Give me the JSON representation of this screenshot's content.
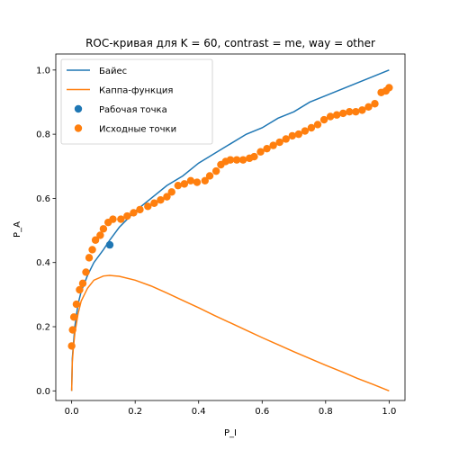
{
  "chart_data": {
    "type": "line",
    "title": "ROC-кривая для K = 60, contrast = me, way = other",
    "xlabel": "P_I",
    "ylabel": "P_A",
    "xlim": [
      -0.05,
      1.05
    ],
    "ylim": [
      -0.03,
      1.05
    ],
    "xticks": [
      0.0,
      0.2,
      0.4,
      0.6,
      0.8,
      1.0
    ],
    "xtick_labels": [
      "0.0",
      "0.2",
      "0.4",
      "0.6",
      "0.8",
      "1.0"
    ],
    "yticks": [
      0.0,
      0.2,
      0.4,
      0.6,
      0.8,
      1.0
    ],
    "ytick_labels": [
      "0.0",
      "0.2",
      "0.4",
      "0.6",
      "0.8",
      "1.0"
    ],
    "grid": false,
    "legend_position": "top-left",
    "series": [
      {
        "name": "Байес",
        "kind": "line",
        "color": "#1f77b4",
        "x": [
          0.0,
          0.002,
          0.005,
          0.01,
          0.02,
          0.03,
          0.05,
          0.07,
          0.1,
          0.12,
          0.15,
          0.2,
          0.25,
          0.3,
          0.35,
          0.4,
          0.45,
          0.5,
          0.55,
          0.6,
          0.65,
          0.7,
          0.75,
          0.8,
          0.85,
          0.9,
          0.95,
          1.0
        ],
        "y": [
          0.0,
          0.1,
          0.14,
          0.2,
          0.27,
          0.31,
          0.36,
          0.4,
          0.44,
          0.47,
          0.51,
          0.56,
          0.6,
          0.64,
          0.67,
          0.71,
          0.74,
          0.77,
          0.8,
          0.82,
          0.85,
          0.87,
          0.9,
          0.92,
          0.94,
          0.96,
          0.98,
          1.0
        ]
      },
      {
        "name": "Каппа-функция",
        "kind": "line",
        "color": "#ff7f0e",
        "x": [
          0.0,
          0.002,
          0.005,
          0.01,
          0.02,
          0.03,
          0.05,
          0.07,
          0.1,
          0.12,
          0.15,
          0.2,
          0.25,
          0.3,
          0.35,
          0.4,
          0.45,
          0.5,
          0.55,
          0.6,
          0.65,
          0.7,
          0.75,
          0.8,
          0.85,
          0.9,
          0.95,
          1.0
        ],
        "y": [
          0.0,
          0.09,
          0.13,
          0.18,
          0.24,
          0.28,
          0.32,
          0.345,
          0.358,
          0.36,
          0.357,
          0.345,
          0.327,
          0.305,
          0.282,
          0.259,
          0.235,
          0.212,
          0.189,
          0.166,
          0.144,
          0.122,
          0.101,
          0.08,
          0.06,
          0.039,
          0.02,
          0.0
        ]
      },
      {
        "name": "Рабочая точка",
        "kind": "scatter",
        "color": "#1f77b4",
        "x": [
          0.12
        ],
        "y": [
          0.455
        ]
      },
      {
        "name": "Исходные точки",
        "kind": "scatter",
        "color": "#ff7f0e",
        "x": [
          0.0,
          0.003,
          0.007,
          0.015,
          0.025,
          0.035,
          0.045,
          0.055,
          0.065,
          0.075,
          0.09,
          0.1,
          0.115,
          0.13,
          0.155,
          0.175,
          0.195,
          0.215,
          0.24,
          0.26,
          0.28,
          0.3,
          0.315,
          0.335,
          0.355,
          0.375,
          0.395,
          0.42,
          0.435,
          0.455,
          0.47,
          0.485,
          0.5,
          0.52,
          0.54,
          0.56,
          0.575,
          0.595,
          0.615,
          0.635,
          0.655,
          0.675,
          0.695,
          0.715,
          0.735,
          0.755,
          0.775,
          0.795,
          0.815,
          0.835,
          0.855,
          0.875,
          0.895,
          0.915,
          0.935,
          0.955,
          0.975,
          0.99,
          1.0
        ],
        "y": [
          0.14,
          0.19,
          0.23,
          0.27,
          0.315,
          0.335,
          0.37,
          0.415,
          0.44,
          0.47,
          0.485,
          0.505,
          0.525,
          0.535,
          0.535,
          0.545,
          0.555,
          0.565,
          0.575,
          0.585,
          0.595,
          0.605,
          0.62,
          0.64,
          0.645,
          0.655,
          0.65,
          0.655,
          0.67,
          0.685,
          0.705,
          0.715,
          0.72,
          0.72,
          0.72,
          0.725,
          0.73,
          0.745,
          0.755,
          0.765,
          0.775,
          0.785,
          0.795,
          0.8,
          0.81,
          0.82,
          0.83,
          0.845,
          0.855,
          0.86,
          0.865,
          0.87,
          0.87,
          0.875,
          0.885,
          0.895,
          0.93,
          0.935,
          0.945
        ]
      }
    ]
  }
}
